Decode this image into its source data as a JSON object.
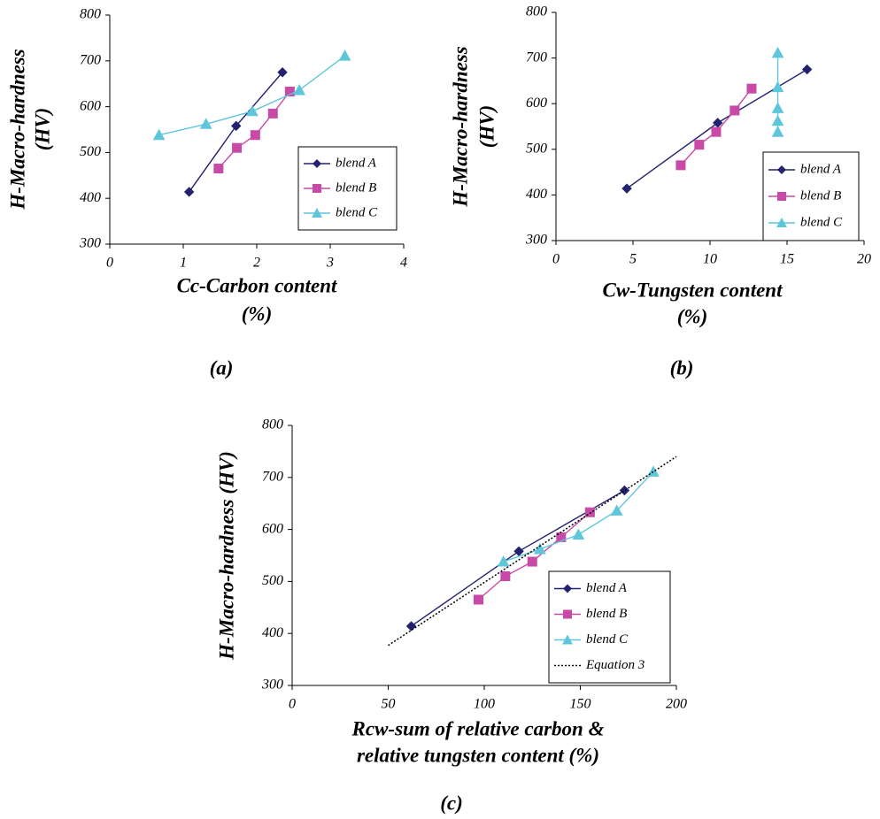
{
  "chart_data": [
    {
      "type": "line",
      "caption": "(a)",
      "xlabel": [
        "Cc-Carbon content",
        "(%)"
      ],
      "ylabel": [
        "H-Macro-hardness",
        "(HV)"
      ],
      "xlim": [
        0,
        4
      ],
      "xticks": [
        0,
        1,
        2,
        3,
        4
      ],
      "ylim": [
        300,
        800
      ],
      "yticks": [
        300,
        400,
        500,
        600,
        700,
        800
      ],
      "legend": "lower right",
      "series": [
        {
          "name": "blend A",
          "color": "#22226e",
          "marker": "diamond",
          "x": [
            1.08,
            1.72,
            2.35
          ],
          "values": [
            414,
            558,
            675
          ]
        },
        {
          "name": "blend B",
          "color": "#c64aa6",
          "marker": "square",
          "x": [
            1.48,
            1.73,
            1.98,
            2.22,
            2.45
          ],
          "values": [
            465,
            510,
            538,
            585,
            633
          ]
        },
        {
          "name": "blend C",
          "color": "#5ec6da",
          "marker": "triangle",
          "x": [
            0.67,
            1.31,
            1.94,
            2.58,
            3.2
          ],
          "values": [
            538,
            562,
            590,
            636,
            711
          ]
        }
      ]
    },
    {
      "type": "line",
      "caption": "(b)",
      "xlabel": [
        "Cw-Tungsten content",
        "(%)"
      ],
      "ylabel": [
        "H-Macro-hardness",
        "(HV)"
      ],
      "xlim": [
        0,
        20
      ],
      "xticks": [
        0,
        5,
        10,
        15,
        20
      ],
      "ylim": [
        300,
        800
      ],
      "yticks": [
        300,
        400,
        500,
        600,
        700,
        800
      ],
      "legend": "lower right",
      "series": [
        {
          "name": "blend A",
          "color": "#22226e",
          "marker": "diamond",
          "x": [
            4.6,
            10.5,
            16.3
          ],
          "values": [
            414,
            558,
            675
          ]
        },
        {
          "name": "blend B",
          "color": "#c64aa6",
          "marker": "square",
          "x": [
            8.1,
            9.3,
            10.4,
            11.6,
            12.7
          ],
          "values": [
            465,
            510,
            538,
            585,
            633
          ]
        },
        {
          "name": "blend C",
          "color": "#5ec6da",
          "marker": "triangle",
          "x": [
            14.4,
            14.4,
            14.4,
            14.4,
            14.4
          ],
          "values": [
            538,
            562,
            590,
            636,
            711
          ]
        }
      ]
    },
    {
      "type": "line",
      "caption": "(c)",
      "xlabel": [
        "Rcw-sum of relative carbon &",
        "relative tungsten content (%)"
      ],
      "ylabel": [
        "H-Macro-hardness (HV)"
      ],
      "xlim": [
        0,
        200
      ],
      "xticks": [
        0,
        50,
        100,
        150,
        200
      ],
      "ylim": [
        300,
        800
      ],
      "yticks": [
        300,
        400,
        500,
        600,
        700,
        800
      ],
      "legend": "lower right",
      "series": [
        {
          "name": "blend A",
          "color": "#22226e",
          "marker": "diamond",
          "x": [
            62,
            118,
            173
          ],
          "values": [
            414,
            558,
            675
          ]
        },
        {
          "name": "blend B",
          "color": "#c64aa6",
          "marker": "square",
          "x": [
            97,
            111,
            125,
            140,
            155
          ],
          "values": [
            465,
            510,
            538,
            585,
            633
          ]
        },
        {
          "name": "blend C",
          "color": "#5ec6da",
          "marker": "triangle",
          "x": [
            110,
            129,
            149,
            169,
            188
          ],
          "values": [
            538,
            562,
            590,
            636,
            711
          ]
        },
        {
          "name": "Equation 3",
          "color": "#000000",
          "marker": "none",
          "dash": "dotted",
          "x": [
            50,
            200
          ],
          "values": [
            377,
            740
          ]
        }
      ]
    }
  ]
}
